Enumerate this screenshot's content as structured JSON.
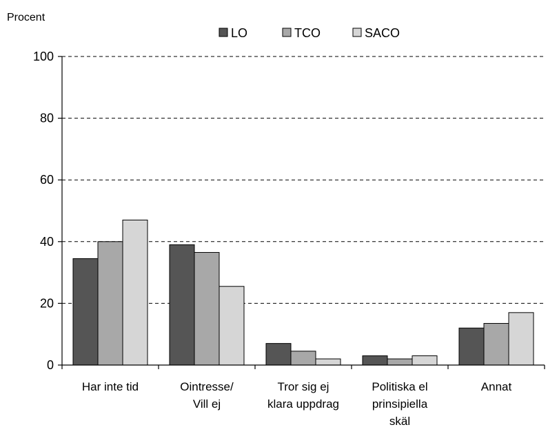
{
  "chart_data": {
    "type": "bar",
    "title": "",
    "ylabel": "Procent",
    "xlabel": "",
    "ylim": [
      0,
      100
    ],
    "yticks": [
      0,
      20,
      40,
      60,
      80,
      100
    ],
    "grid": "horizontal dashed",
    "legend_position": "top",
    "categories": [
      [
        "Har inte tid"
      ],
      [
        "Ointresse/",
        "Vill ej"
      ],
      [
        "Tror sig ej",
        "klara uppdrag"
      ],
      [
        "Politiska el",
        "prinsipiella",
        "skäl"
      ],
      [
        "Annat"
      ]
    ],
    "series": [
      {
        "name": "LO",
        "color": "#555555",
        "values": [
          34.5,
          39,
          7,
          3,
          12
        ]
      },
      {
        "name": "TCO",
        "color": "#a8a8a8",
        "values": [
          40,
          36.5,
          4.5,
          2,
          13.5
        ]
      },
      {
        "name": "SACO",
        "color": "#d6d6d6",
        "values": [
          47,
          25.5,
          2,
          3,
          17
        ]
      }
    ]
  }
}
